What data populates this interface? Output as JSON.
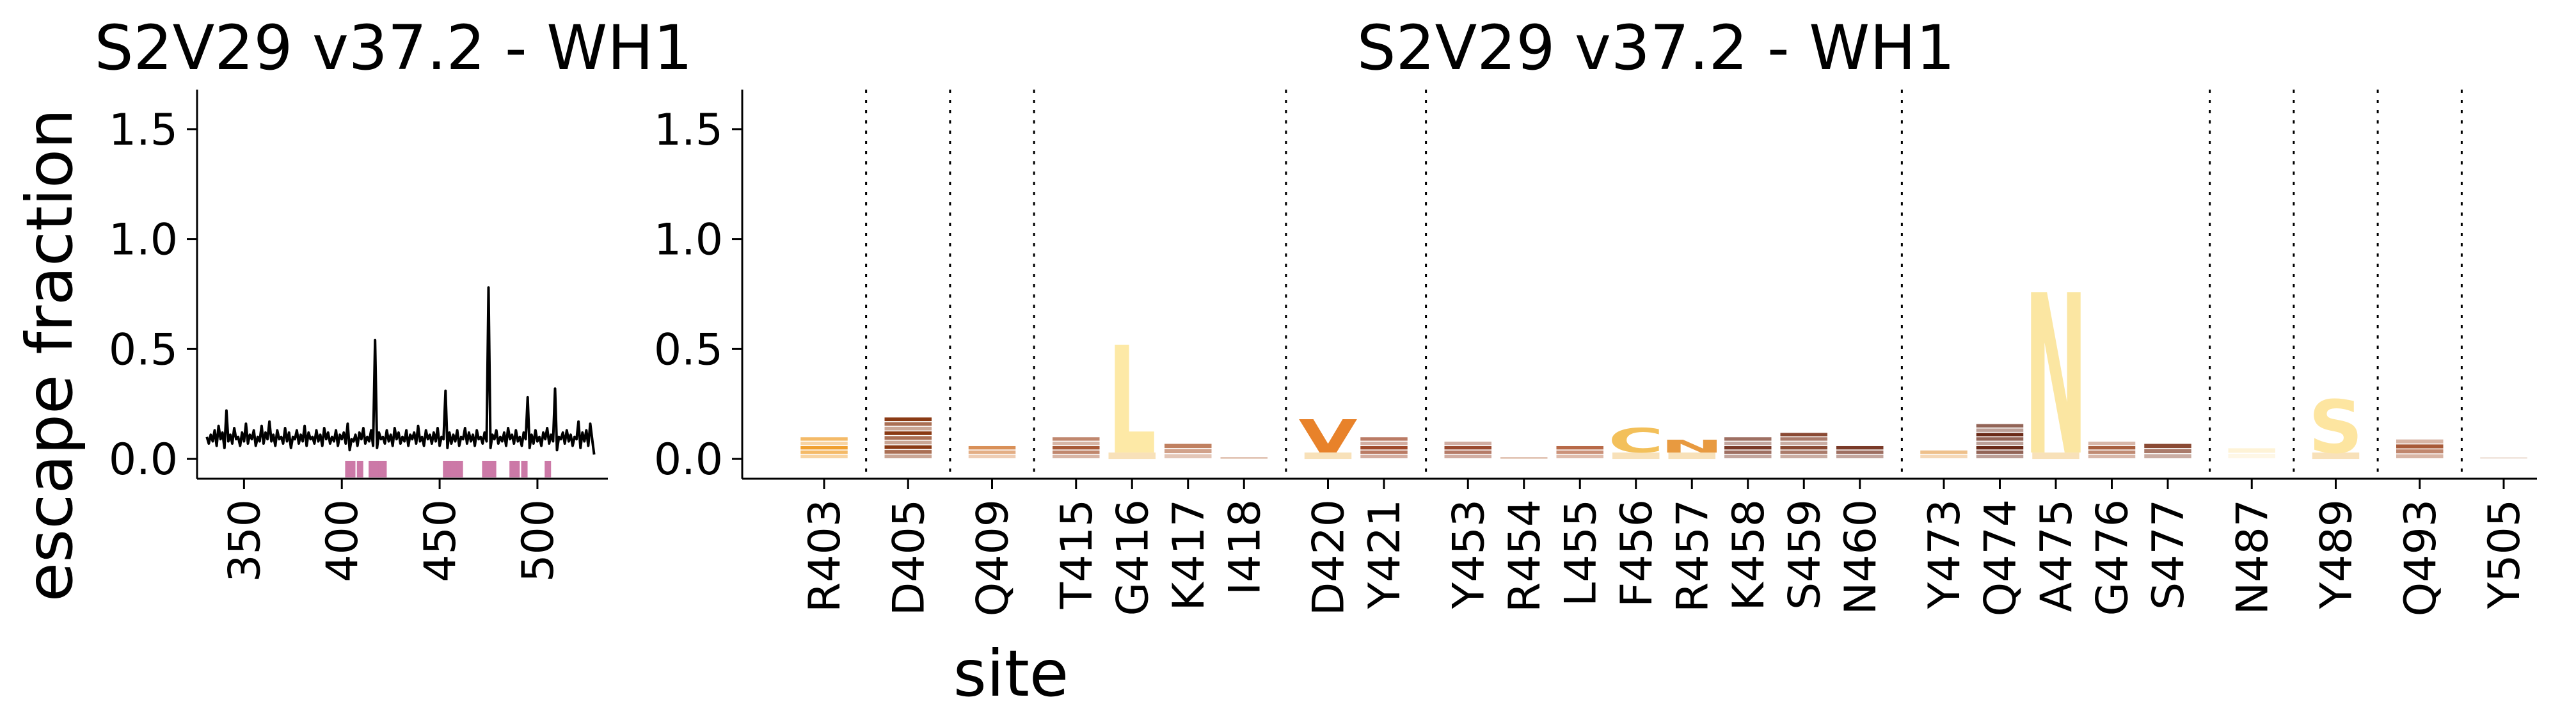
{
  "chart_data": [
    {
      "type": "line",
      "title": "S2V29 v37.2 - WH1",
      "ylabel": "escape fraction",
      "xlabel": "",
      "xlim": [
        326,
        536
      ],
      "ylim": [
        -0.09,
        1.68
      ],
      "xticks": [
        350,
        400,
        450,
        500
      ],
      "yticks": [
        0.0,
        0.5,
        1.0,
        1.5
      ],
      "ytick_labels": [
        "0.0",
        "0.5",
        "1.0",
        "1.5"
      ],
      "line_color": "#000000",
      "highlight_color": "#cc79a7",
      "highlight_sites": [
        403,
        405,
        409,
        415,
        416,
        417,
        418,
        420,
        421,
        453,
        454,
        455,
        456,
        457,
        458,
        459,
        460,
        473,
        474,
        475,
        476,
        477,
        487,
        489,
        493,
        505
      ],
      "series": [
        {
          "x_start": 331,
          "values": [
            0.1,
            0.07,
            0.11,
            0.08,
            0.13,
            0.06,
            0.15,
            0.09,
            0.12,
            0.05,
            0.22,
            0.08,
            0.11,
            0.07,
            0.14,
            0.09,
            0.1,
            0.06,
            0.12,
            0.08,
            0.16,
            0.07,
            0.11,
            0.09,
            0.13,
            0.06,
            0.1,
            0.08,
            0.15,
            0.07,
            0.12,
            0.09,
            0.17,
            0.08,
            0.11,
            0.06,
            0.13,
            0.09,
            0.1,
            0.07,
            0.14,
            0.08,
            0.12,
            0.05,
            0.1,
            0.09,
            0.13,
            0.07,
            0.11,
            0.08,
            0.15,
            0.06,
            0.12,
            0.09,
            0.1,
            0.07,
            0.13,
            0.08,
            0.11,
            0.06,
            0.14,
            0.09,
            0.12,
            0.07,
            0.1,
            0.08,
            0.13,
            0.06,
            0.11,
            0.09,
            0.12,
            0.07,
            0.16,
            0.04,
            0.09,
            0.08,
            0.11,
            0.06,
            0.12,
            0.09,
            0.14,
            0.07,
            0.1,
            0.08,
            0.13,
            0.06,
            0.54,
            0.05,
            0.12,
            0.09,
            0.1,
            0.07,
            0.13,
            0.08,
            0.11,
            0.06,
            0.14,
            0.09,
            0.12,
            0.07,
            0.1,
            0.08,
            0.13,
            0.06,
            0.11,
            0.09,
            0.12,
            0.07,
            0.15,
            0.08,
            0.1,
            0.06,
            0.13,
            0.09,
            0.11,
            0.07,
            0.12,
            0.08,
            0.14,
            0.06,
            0.1,
            0.09,
            0.31,
            0.05,
            0.12,
            0.07,
            0.11,
            0.08,
            0.13,
            0.06,
            0.1,
            0.09,
            0.14,
            0.07,
            0.12,
            0.08,
            0.11,
            0.06,
            0.13,
            0.09,
            0.1,
            0.07,
            0.12,
            0.08,
            0.78,
            0.05,
            0.11,
            0.09,
            0.13,
            0.07,
            0.1,
            0.08,
            0.12,
            0.06,
            0.14,
            0.09,
            0.11,
            0.07,
            0.13,
            0.08,
            0.1,
            0.06,
            0.12,
            0.09,
            0.28,
            0.05,
            0.11,
            0.07,
            0.13,
            0.08,
            0.1,
            0.06,
            0.12,
            0.09,
            0.14,
            0.07,
            0.11,
            0.08,
            0.32,
            0.04,
            0.1,
            0.09,
            0.12,
            0.07,
            0.13,
            0.08,
            0.11,
            0.06,
            0.1,
            0.09,
            0.17,
            0.05,
            0.12,
            0.08,
            0.13,
            0.06,
            0.16,
            0.09,
            0.02
          ]
        }
      ]
    },
    {
      "type": "logo",
      "title": "S2V29 v37.2 - WH1",
      "xlabel": "site",
      "ylabel": "",
      "ylim": [
        -0.09,
        1.68
      ],
      "yticks": [
        0.0,
        0.5,
        1.0,
        1.5
      ],
      "ytick_labels": [
        "0.0",
        "0.5",
        "1.0",
        "1.5"
      ],
      "gap_after": [
        0,
        1,
        2,
        6,
        8,
        16,
        21,
        22,
        23,
        24
      ],
      "sites": [
        {
          "label": "R403",
          "height": 0.1,
          "letter": "",
          "color": "#f0a030"
        },
        {
          "label": "D405",
          "height": 0.19,
          "letter": "",
          "color": "#8a3a14"
        },
        {
          "label": "Q409",
          "height": 0.06,
          "letter": "",
          "color": "#d99058"
        },
        {
          "label": "T415",
          "height": 0.1,
          "letter": "",
          "color": "#a85a38"
        },
        {
          "label": "G416",
          "height": 0.52,
          "letter": "L",
          "color": "#fde9a6"
        },
        {
          "label": "K417",
          "height": 0.07,
          "letter": "",
          "color": "#c08060"
        },
        {
          "label": "I418",
          "height": 0.01,
          "letter": "",
          "color": "#c08060"
        },
        {
          "label": "D420",
          "height": 0.18,
          "letter": "V",
          "color": "#e8822a"
        },
        {
          "label": "Y421",
          "height": 0.1,
          "letter": "",
          "color": "#a04a2c"
        },
        {
          "label": "Y453",
          "height": 0.08,
          "letter": "",
          "color": "#9a4a30"
        },
        {
          "label": "R454",
          "height": 0.01,
          "letter": "",
          "color": "#c08060"
        },
        {
          "label": "L455",
          "height": 0.06,
          "letter": "",
          "color": "#b86a48"
        },
        {
          "label": "F456",
          "height": 0.14,
          "letter": "C",
          "color": "#f3c05a"
        },
        {
          "label": "R457",
          "height": 0.07,
          "letter": "N",
          "color": "#e89a40"
        },
        {
          "label": "K458",
          "height": 0.1,
          "letter": "",
          "color": "#7a3a28"
        },
        {
          "label": "S459",
          "height": 0.12,
          "letter": "",
          "color": "#8a4a34"
        },
        {
          "label": "N460",
          "height": 0.06,
          "letter": "",
          "color": "#7a3a28"
        },
        {
          "label": "Y473",
          "height": 0.04,
          "letter": "",
          "color": "#e8a860"
        },
        {
          "label": "Q474",
          "height": 0.16,
          "letter": "",
          "color": "#6a2a18"
        },
        {
          "label": "A475",
          "height": 0.76,
          "letter": "N",
          "color": "#fbe6a2"
        },
        {
          "label": "G476",
          "height": 0.08,
          "letter": "",
          "color": "#a86040"
        },
        {
          "label": "S477",
          "height": 0.07,
          "letter": "",
          "color": "#8a4a34"
        },
        {
          "label": "N487",
          "height": 0.05,
          "letter": "",
          "color": "#fdeec8"
        },
        {
          "label": "Y489",
          "height": 0.27,
          "letter": "S",
          "color": "#fde5a0"
        },
        {
          "label": "Q493",
          "height": 0.09,
          "letter": "",
          "color": "#a85a38"
        },
        {
          "label": "Y505",
          "height": 0.01,
          "letter": "",
          "color": "#e0c8b8"
        }
      ]
    }
  ]
}
